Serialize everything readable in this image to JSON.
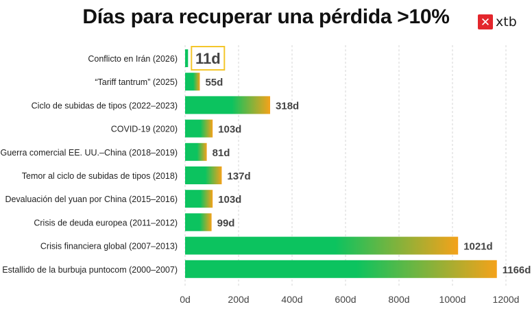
{
  "header": {
    "title": "Días para recuperar una pérdida >10%",
    "logo_text": "xtb",
    "logo_icon": "x-logo-icon"
  },
  "colors": {
    "bar_start": "#0cc35f",
    "bar_end": "#f4a21a",
    "highlight_box": "#f4c62a",
    "grid": "#d6d6d6",
    "label_text": "#222222",
    "value_text": "#444444",
    "brand": "#e3262c"
  },
  "chart_data": {
    "type": "bar",
    "orientation": "horizontal",
    "title": "Días para recuperar una pérdida >10%",
    "categories": [
      "Conflicto en Irán (2026)",
      "“Tariff tantrum” (2025)",
      "Ciclo de subidas de tipos (2022–2023)",
      "COVID-19 (2020)",
      "Guerra comercial EE. UU.–China (2018–2019)",
      "Temor al ciclo de subidas de tipos (2018)",
      "Devaluación del yuan por China (2015–2016)",
      "Crisis de deuda europea (2011–2012)",
      "Crisis financiera global (2007–2013)",
      "Estallido de la burbuja puntocom (2000–2007)"
    ],
    "values": [
      11,
      55,
      318,
      103,
      81,
      137,
      103,
      99,
      1021,
      1166
    ],
    "value_labels": [
      "11d",
      "55d",
      "318d",
      "103d",
      "81d",
      "137d",
      "103d",
      "99d",
      "1021d",
      "1166d"
    ],
    "highlighted_index": 0,
    "xlim": [
      0,
      1200
    ],
    "xticks": [
      0,
      200,
      400,
      600,
      800,
      1000,
      1200
    ],
    "xtick_labels": [
      "0d",
      "200d",
      "400d",
      "600d",
      "800d",
      "1000d",
      "1200d"
    ],
    "grid": "vertical dashed"
  }
}
